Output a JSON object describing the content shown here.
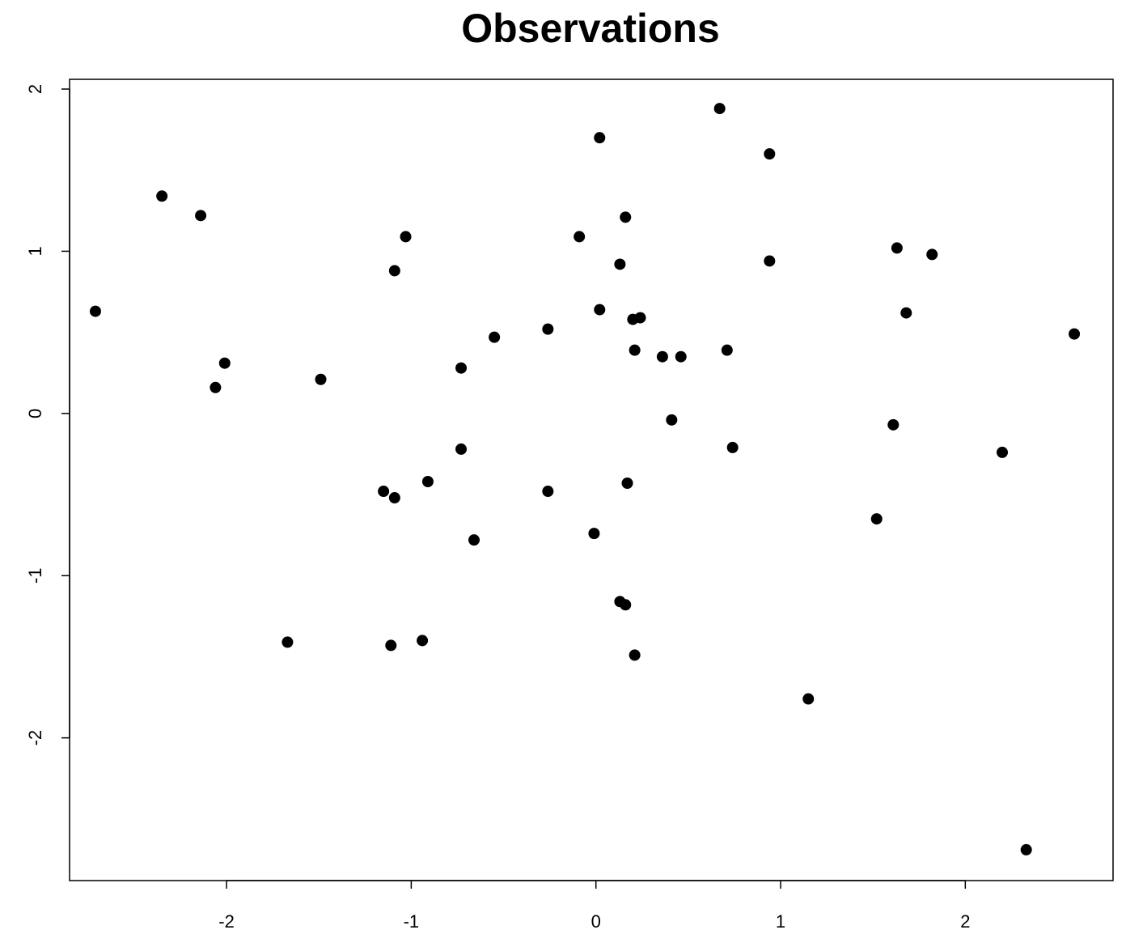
{
  "chart_data": {
    "type": "scatter",
    "title": "Observations",
    "xlabel": "",
    "ylabel": "",
    "xlim": [
      -2.85,
      2.8
    ],
    "ylim": [
      -2.88,
      2.06
    ],
    "xticks": [
      -2,
      -1,
      0,
      1,
      2
    ],
    "yticks": [
      -2,
      -1,
      0,
      1,
      2
    ],
    "xtick_labels": [
      "-2",
      "-1",
      "0",
      "1",
      "2"
    ],
    "ytick_labels": [
      "-2",
      "-1",
      "0",
      "1",
      "2"
    ],
    "grid": false,
    "point_color": "#000000",
    "points": [
      {
        "x": 0.67,
        "y": 1.88
      },
      {
        "x": 0.02,
        "y": 1.7
      },
      {
        "x": 0.94,
        "y": 1.6
      },
      {
        "x": -2.35,
        "y": 1.34
      },
      {
        "x": -2.14,
        "y": 1.22
      },
      {
        "x": 0.16,
        "y": 1.21
      },
      {
        "x": -1.03,
        "y": 1.09
      },
      {
        "x": -0.09,
        "y": 1.09
      },
      {
        "x": 1.63,
        "y": 1.02
      },
      {
        "x": 1.82,
        "y": 0.98
      },
      {
        "x": 0.94,
        "y": 0.94
      },
      {
        "x": 0.13,
        "y": 0.92
      },
      {
        "x": -1.09,
        "y": 0.88
      },
      {
        "x": -2.71,
        "y": 0.63
      },
      {
        "x": 0.02,
        "y": 0.64
      },
      {
        "x": 1.68,
        "y": 0.62
      },
      {
        "x": 0.2,
        "y": 0.58
      },
      {
        "x": 0.24,
        "y": 0.59
      },
      {
        "x": 2.59,
        "y": 0.49
      },
      {
        "x": -0.26,
        "y": 0.52
      },
      {
        "x": -0.55,
        "y": 0.47
      },
      {
        "x": 0.21,
        "y": 0.39
      },
      {
        "x": 0.71,
        "y": 0.39
      },
      {
        "x": 0.36,
        "y": 0.35
      },
      {
        "x": 0.46,
        "y": 0.35
      },
      {
        "x": -2.01,
        "y": 0.31
      },
      {
        "x": -0.73,
        "y": 0.28
      },
      {
        "x": -1.49,
        "y": 0.21
      },
      {
        "x": -2.06,
        "y": 0.16
      },
      {
        "x": 0.41,
        "y": -0.04
      },
      {
        "x": 1.61,
        "y": -0.07
      },
      {
        "x": 0.74,
        "y": -0.21
      },
      {
        "x": -0.73,
        "y": -0.22
      },
      {
        "x": 2.2,
        "y": -0.24
      },
      {
        "x": -0.91,
        "y": -0.42
      },
      {
        "x": 0.17,
        "y": -0.43
      },
      {
        "x": -1.15,
        "y": -0.48
      },
      {
        "x": -0.26,
        "y": -0.48
      },
      {
        "x": -1.09,
        "y": -0.52
      },
      {
        "x": 1.52,
        "y": -0.65
      },
      {
        "x": -0.01,
        "y": -0.74
      },
      {
        "x": -0.66,
        "y": -0.78
      },
      {
        "x": 0.13,
        "y": -1.16
      },
      {
        "x": 0.16,
        "y": -1.18
      },
      {
        "x": -0.94,
        "y": -1.4
      },
      {
        "x": -1.67,
        "y": -1.41
      },
      {
        "x": -1.11,
        "y": -1.43
      },
      {
        "x": 0.21,
        "y": -1.49
      },
      {
        "x": 1.15,
        "y": -1.76
      },
      {
        "x": 2.33,
        "y": -2.69
      }
    ]
  }
}
